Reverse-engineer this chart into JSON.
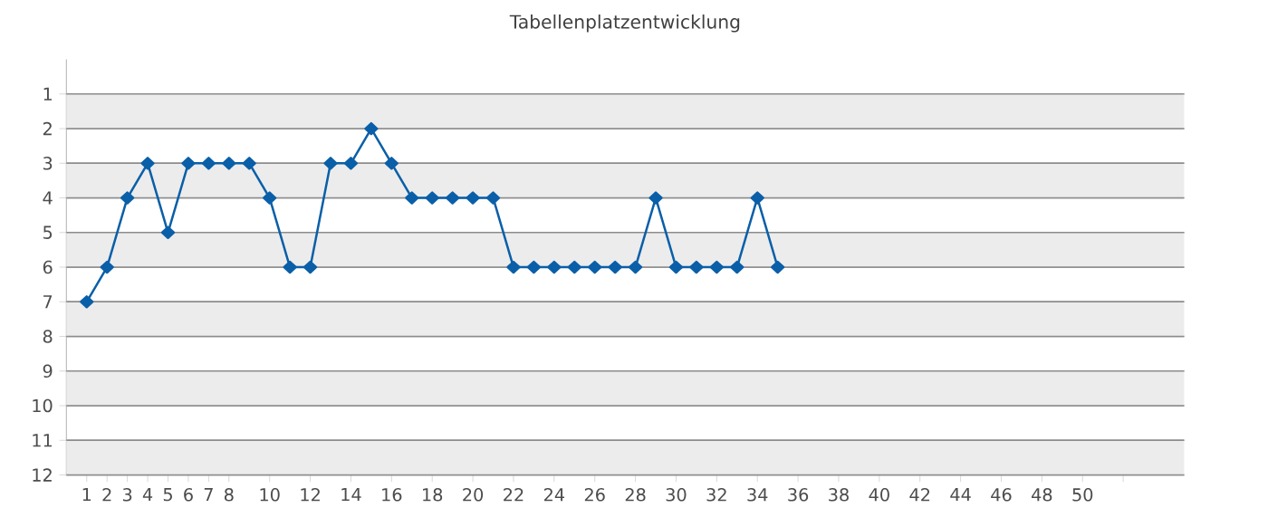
{
  "chart_data": {
    "type": "line",
    "title": "Tabellenplatzentwicklung",
    "x": [
      1,
      2,
      3,
      4,
      5,
      6,
      7,
      8,
      9,
      10,
      11,
      12,
      13,
      14,
      15,
      16,
      17,
      18,
      19,
      20,
      21,
      22,
      23,
      24,
      25,
      26,
      27,
      28,
      29,
      30,
      31,
      32,
      33,
      34,
      35
    ],
    "series": [
      {
        "color": "#0a5fa8",
        "values": [
          7,
          6,
          4,
          3,
          5,
          3,
          3,
          3,
          3,
          4,
          6,
          6,
          3,
          3,
          2,
          3,
          4,
          4,
          4,
          4,
          4,
          6,
          6,
          6,
          6,
          6,
          6,
          6,
          4,
          6,
          6,
          6,
          6,
          4,
          6
        ]
      }
    ],
    "xlim": [
      0,
      55
    ],
    "ylim": [
      12,
      0
    ],
    "xticks": [
      1,
      2,
      3,
      4,
      5,
      6,
      7,
      8,
      10,
      12,
      14,
      16,
      18,
      20,
      22,
      24,
      26,
      28,
      30,
      32,
      34,
      36,
      38,
      40,
      42,
      44,
      46,
      48,
      50,
      {
        "value": 52,
        "label": null
      }
    ],
    "yticks": [
      1,
      2,
      3,
      4,
      5,
      6,
      7,
      8,
      9,
      10,
      11,
      12
    ],
    "bands": [
      {
        "axis": "y",
        "from": 1,
        "to": 2,
        "color": "#ececec"
      },
      {
        "axis": "y",
        "from": 3,
        "to": 4,
        "color": "#ececec"
      },
      {
        "axis": "y",
        "from": 5,
        "to": 6,
        "color": "#ececec"
      },
      {
        "axis": "y",
        "from": 7,
        "to": 8,
        "color": "#ececec"
      },
      {
        "axis": "y",
        "from": 9,
        "to": 10,
        "color": "#ececec"
      },
      {
        "axis": "y",
        "from": 11,
        "to": 12,
        "color": "#ececec"
      }
    ],
    "grid": "y",
    "marker": "diamond",
    "line_style": "solid"
  }
}
